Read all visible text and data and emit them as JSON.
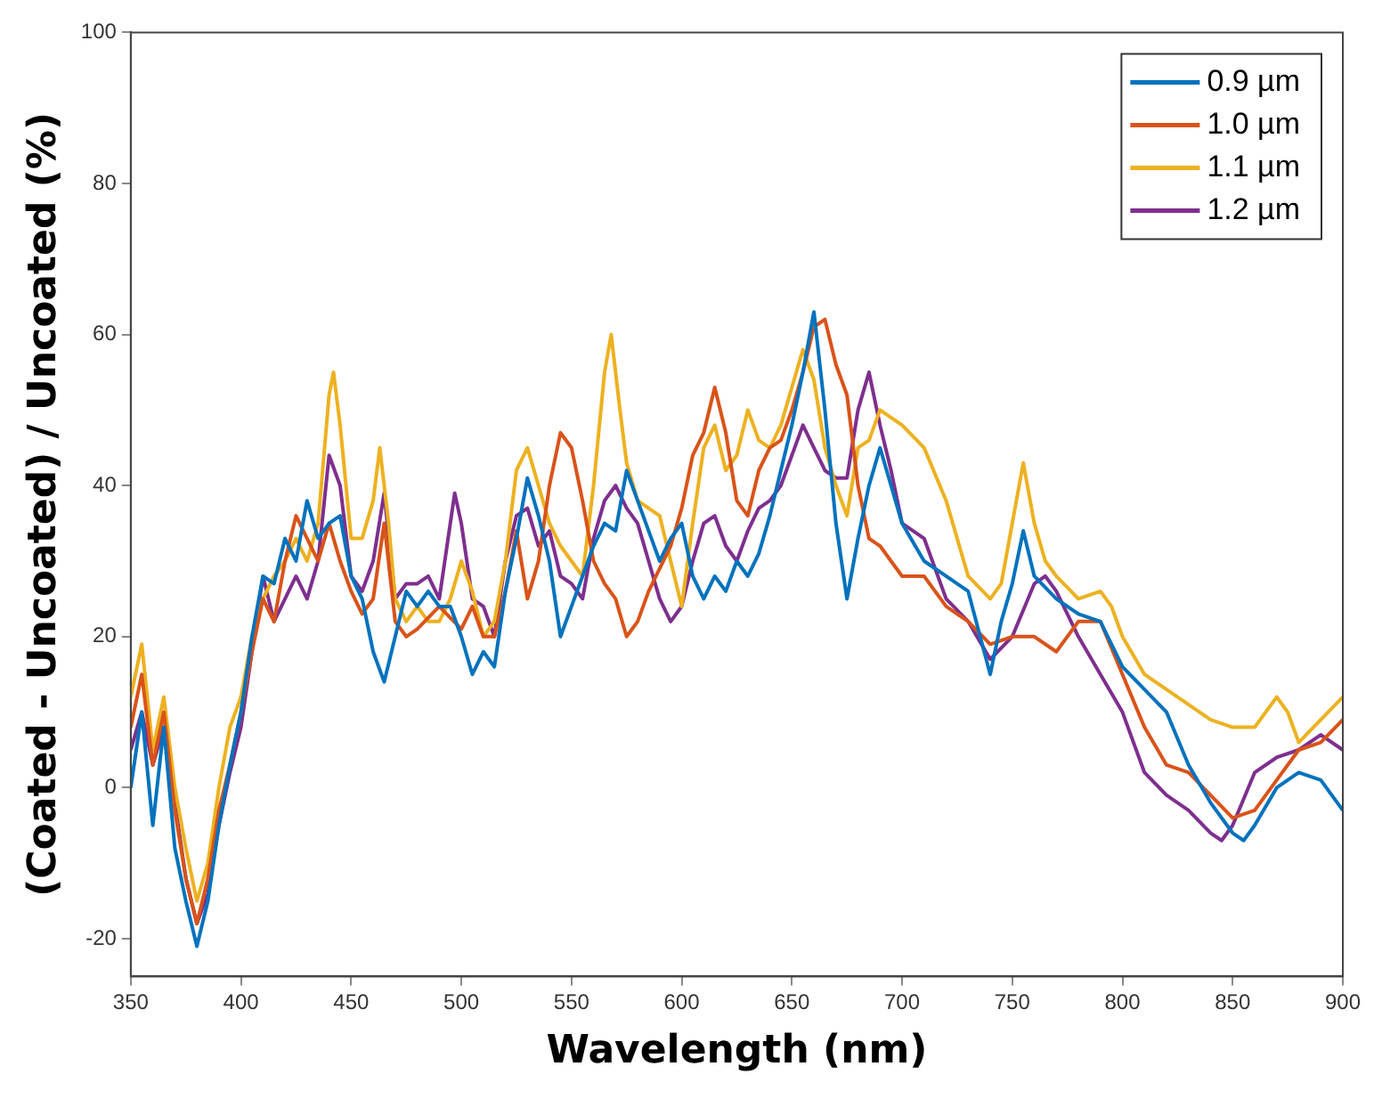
{
  "chart_data": {
    "type": "line",
    "xlabel": "Wavelength (nm)",
    "ylabel": "(Coated - Uncoated) / Uncoated (%)",
    "xlim": [
      350,
      900
    ],
    "ylim": [
      -25,
      100
    ],
    "xticks": [
      350,
      400,
      450,
      500,
      550,
      600,
      650,
      700,
      750,
      800,
      850,
      900
    ],
    "yticks": [
      -20,
      0,
      20,
      40,
      60,
      80,
      100
    ],
    "legend": "top right",
    "series": [
      {
        "name": "0.9 µm",
        "color": "#0072bd",
        "x": [
          350,
          355,
          360,
          365,
          370,
          375,
          380,
          385,
          390,
          395,
          400,
          405,
          410,
          415,
          420,
          425,
          430,
          435,
          440,
          445,
          450,
          455,
          460,
          465,
          470,
          475,
          480,
          485,
          490,
          495,
          500,
          505,
          510,
          515,
          520,
          525,
          530,
          535,
          540,
          545,
          550,
          555,
          560,
          565,
          570,
          575,
          580,
          585,
          590,
          595,
          600,
          605,
          610,
          615,
          620,
          625,
          630,
          635,
          640,
          645,
          650,
          655,
          660,
          665,
          670,
          675,
          680,
          685,
          690,
          695,
          700,
          710,
          720,
          730,
          740,
          745,
          750,
          755,
          760,
          770,
          780,
          790,
          800,
          810,
          820,
          830,
          840,
          850,
          855,
          860,
          870,
          880,
          890,
          900
        ],
        "values": [
          0,
          10,
          -5,
          8,
          -8,
          -15,
          -21,
          -15,
          -5,
          3,
          10,
          20,
          28,
          27,
          33,
          30,
          38,
          33,
          35,
          36,
          28,
          25,
          18,
          14,
          20,
          26,
          24,
          26,
          24,
          24,
          20,
          15,
          18,
          16,
          26,
          33,
          41,
          36,
          30,
          20,
          24,
          28,
          32,
          35,
          34,
          42,
          38,
          34,
          30,
          33,
          35,
          28,
          25,
          28,
          26,
          30,
          28,
          31,
          36,
          42,
          48,
          55,
          63,
          50,
          35,
          25,
          33,
          40,
          45,
          40,
          35,
          30,
          28,
          26,
          15,
          22,
          27,
          34,
          28,
          25,
          23,
          22,
          16,
          13,
          10,
          3,
          -2,
          -6,
          -7,
          -5,
          0,
          2,
          1,
          -3
        ]
      },
      {
        "name": "1.0 µm",
        "color": "#d95319",
        "x": [
          350,
          355,
          360,
          365,
          370,
          375,
          380,
          385,
          390,
          395,
          400,
          405,
          410,
          415,
          420,
          425,
          430,
          435,
          440,
          445,
          450,
          455,
          460,
          465,
          470,
          475,
          480,
          490,
          500,
          505,
          510,
          515,
          520,
          525,
          530,
          535,
          540,
          545,
          550,
          555,
          560,
          565,
          570,
          575,
          580,
          585,
          590,
          595,
          600,
          605,
          610,
          615,
          620,
          625,
          630,
          635,
          640,
          645,
          650,
          655,
          660,
          665,
          670,
          675,
          680,
          685,
          690,
          700,
          710,
          720,
          730,
          740,
          750,
          760,
          770,
          780,
          790,
          800,
          810,
          820,
          830,
          840,
          850,
          860,
          870,
          880,
          890,
          900
        ],
        "values": [
          8,
          15,
          3,
          10,
          -3,
          -12,
          -18,
          -12,
          -3,
          3,
          10,
          18,
          25,
          22,
          30,
          36,
          33,
          30,
          35,
          30,
          26,
          23,
          25,
          35,
          22,
          20,
          21,
          24,
          21,
          24,
          20,
          20,
          26,
          34,
          25,
          30,
          40,
          47,
          45,
          38,
          30,
          27,
          25,
          20,
          22,
          26,
          29,
          32,
          37,
          44,
          47,
          53,
          47,
          38,
          36,
          42,
          45,
          46,
          50,
          55,
          61,
          62,
          56,
          52,
          40,
          33,
          32,
          28,
          28,
          24,
          22,
          19,
          20,
          20,
          18,
          22,
          22,
          15,
          8,
          3,
          2,
          -1,
          -4,
          -3,
          1,
          5,
          6,
          9
        ]
      },
      {
        "name": "1.1 µm",
        "color": "#edb120",
        "x": [
          350,
          355,
          360,
          365,
          370,
          375,
          380,
          385,
          390,
          395,
          400,
          405,
          410,
          415,
          420,
          425,
          430,
          435,
          440,
          442,
          445,
          450,
          455,
          460,
          463,
          467,
          470,
          475,
          480,
          485,
          490,
          495,
          500,
          505,
          510,
          515,
          520,
          525,
          530,
          535,
          540,
          545,
          550,
          555,
          560,
          565,
          568,
          572,
          575,
          580,
          590,
          595,
          600,
          605,
          610,
          615,
          620,
          625,
          630,
          635,
          640,
          645,
          650,
          655,
          660,
          665,
          670,
          675,
          680,
          685,
          690,
          700,
          710,
          720,
          730,
          740,
          745,
          750,
          755,
          760,
          765,
          770,
          780,
          790,
          795,
          800,
          810,
          820,
          830,
          840,
          850,
          860,
          870,
          875,
          880,
          890,
          900
        ],
        "values": [
          12,
          19,
          5,
          12,
          0,
          -8,
          -15,
          -10,
          0,
          8,
          12,
          20,
          25,
          28,
          30,
          33,
          30,
          35,
          52,
          55,
          48,
          33,
          33,
          38,
          45,
          35,
          25,
          22,
          24,
          22,
          22,
          25,
          30,
          26,
          20,
          22,
          30,
          42,
          45,
          40,
          35,
          32,
          30,
          28,
          40,
          55,
          60,
          50,
          43,
          38,
          36,
          30,
          24,
          35,
          45,
          48,
          42,
          44,
          50,
          46,
          45,
          48,
          53,
          58,
          54,
          45,
          40,
          36,
          45,
          46,
          50,
          48,
          45,
          38,
          28,
          25,
          27,
          35,
          43,
          35,
          30,
          28,
          25,
          26,
          24,
          20,
          15,
          13,
          11,
          9,
          8,
          8,
          12,
          10,
          6,
          9,
          12
        ]
      },
      {
        "name": "1.2 µm",
        "color": "#7e2f8e",
        "x": [
          350,
          355,
          360,
          365,
          370,
          375,
          380,
          385,
          390,
          395,
          400,
          405,
          410,
          415,
          420,
          425,
          430,
          435,
          440,
          445,
          450,
          455,
          460,
          465,
          470,
          475,
          480,
          485,
          490,
          495,
          497,
          500,
          505,
          510,
          515,
          520,
          525,
          530,
          535,
          540,
          545,
          550,
          555,
          560,
          565,
          570,
          575,
          580,
          585,
          590,
          595,
          600,
          605,
          610,
          615,
          620,
          625,
          630,
          635,
          640,
          645,
          650,
          655,
          660,
          665,
          670,
          675,
          680,
          685,
          690,
          695,
          700,
          710,
          720,
          730,
          740,
          750,
          760,
          765,
          770,
          780,
          790,
          800,
          810,
          820,
          830,
          840,
          845,
          850,
          860,
          870,
          880,
          890,
          900
        ],
        "values": [
          5,
          10,
          3,
          8,
          -2,
          -12,
          -18,
          -14,
          -5,
          2,
          8,
          18,
          28,
          22,
          25,
          28,
          25,
          30,
          44,
          40,
          28,
          26,
          30,
          39,
          25,
          27,
          27,
          28,
          25,
          35,
          39,
          35,
          25,
          24,
          20,
          30,
          36,
          37,
          32,
          34,
          28,
          27,
          25,
          33,
          38,
          40,
          37,
          35,
          30,
          25,
          22,
          24,
          30,
          35,
          36,
          32,
          30,
          34,
          37,
          38,
          40,
          44,
          48,
          45,
          42,
          41,
          41,
          50,
          55,
          48,
          42,
          35,
          33,
          25,
          22,
          17,
          20,
          27,
          28,
          26,
          20,
          15,
          10,
          2,
          -1,
          -3,
          -6,
          -7,
          -5,
          2,
          4,
          5,
          7,
          5
        ]
      }
    ]
  }
}
